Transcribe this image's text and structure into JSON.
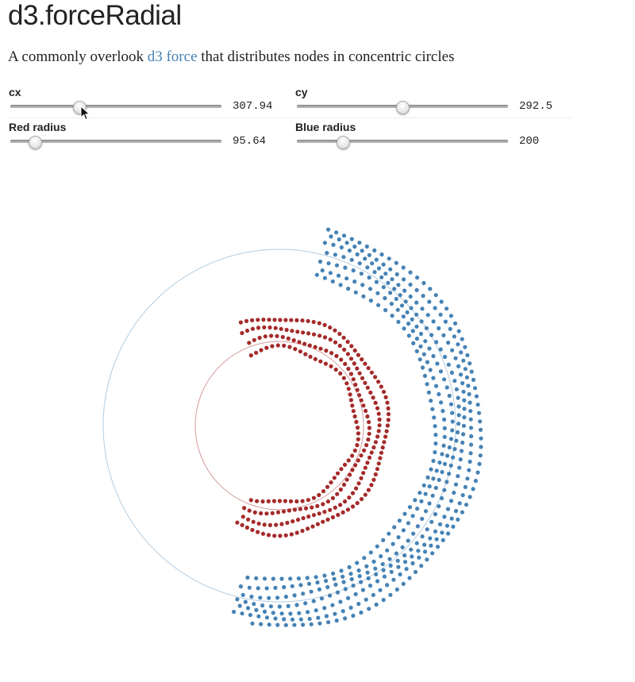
{
  "page": {
    "title": "d3.forceRadial",
    "subtitle_before": "A commonly overlook ",
    "subtitle_link": "d3 force",
    "subtitle_after": " that distributes nodes in concentric circles"
  },
  "controls": {
    "cx": {
      "label": "cx",
      "value": "307.94",
      "fraction": 0.33
    },
    "cy": {
      "label": "cy",
      "value": "292.5",
      "fraction": 0.5
    },
    "red_radius": {
      "label": "Red radius",
      "value": "95.64",
      "fraction": 0.12
    },
    "blue_radius": {
      "label": "Blue radius",
      "value": "200",
      "fraction": 0.22
    }
  },
  "colors": {
    "red": "#a52a2a",
    "blue": "#4682b4",
    "red_ring": "#d49a9a",
    "blue_ring": "#b4cde0",
    "link": "#4682b4"
  },
  "visualization": {
    "red": {
      "ring_radius": 95.64,
      "node_count": 260
    },
    "blue": {
      "ring_radius": 200,
      "node_count": 460
    }
  }
}
